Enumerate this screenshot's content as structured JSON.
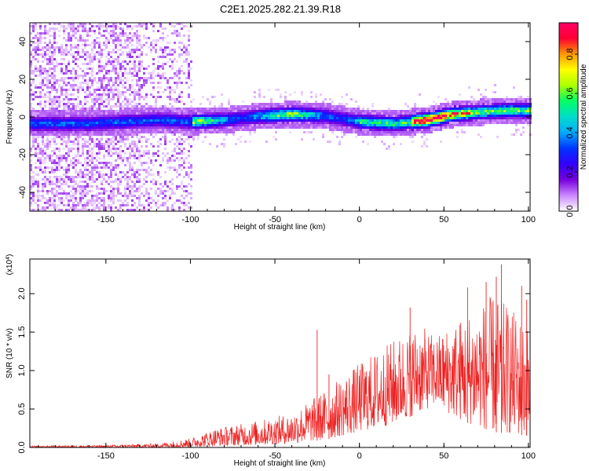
{
  "title": "C2E1.2025.282.21.39.R18",
  "colors": {
    "snr_line": "#ee2222",
    "background": "#ffffff",
    "axis": "#000000"
  },
  "chart_data": [
    {
      "type": "heatmap",
      "name": "spectrogram",
      "xlabel": "Height of straight line (km)",
      "ylabel": "Frequency (Hz)",
      "xlim": [
        -195,
        101
      ],
      "ylim": [
        -50,
        50
      ],
      "xticks": [
        -150,
        -100,
        -50,
        0,
        50,
        100
      ],
      "yticks": [
        -40,
        -20,
        0,
        20,
        40
      ],
      "colorbar": {
        "label": "Normalized spectral amplitude",
        "range": [
          0.0,
          0.96
        ],
        "ticks": [
          0.0,
          0.2,
          0.4,
          0.6,
          0.8
        ],
        "stops": [
          "#ffffff",
          "#cc88ff",
          "#7700dd",
          "#3300ff",
          "#0033ff",
          "#00aaff",
          "#00ddcc",
          "#00ff66",
          "#aaff00",
          "#ffff00",
          "#ff9900",
          "#ff0033",
          "#ff0066"
        ]
      },
      "ridge": [
        {
          "x": -185,
          "f": -3
        },
        {
          "x": -160,
          "f": -3
        },
        {
          "x": -140,
          "f": -2
        },
        {
          "x": -120,
          "f": -1
        },
        {
          "x": -100,
          "f": -2
        },
        {
          "x": -80,
          "f": -1
        },
        {
          "x": -60,
          "f": 1
        },
        {
          "x": -40,
          "f": 2
        },
        {
          "x": -20,
          "f": 1
        },
        {
          "x": 0,
          "f": -2
        },
        {
          "x": 20,
          "f": -3
        },
        {
          "x": 40,
          "f": -1
        },
        {
          "x": 55,
          "f": 2
        },
        {
          "x": 70,
          "f": 3
        },
        {
          "x": 85,
          "f": 4
        },
        {
          "x": 100,
          "f": 4
        }
      ]
    },
    {
      "type": "line",
      "name": "snr",
      "xlabel": "Height of straight line (km)",
      "ylabel": "SNR (10 * v/v)",
      "yscale_label": "(x10",
      "yscale_exp": "4",
      "yscale_close": ")",
      "xlim": [
        -195,
        101
      ],
      "ylim": [
        0,
        2.45
      ],
      "xticks": [
        -150,
        -100,
        -50,
        0,
        50,
        100
      ],
      "yticks": [
        "0.0",
        "0.5",
        "1.0",
        "1.5",
        "2.0"
      ],
      "envelope": [
        {
          "x": -195,
          "lo": 0.0,
          "hi": 0.02
        },
        {
          "x": -150,
          "lo": 0.0,
          "hi": 0.03
        },
        {
          "x": -120,
          "lo": 0.0,
          "hi": 0.05
        },
        {
          "x": -100,
          "lo": 0.0,
          "hi": 0.12
        },
        {
          "x": -85,
          "lo": 0.02,
          "hi": 0.25
        },
        {
          "x": -60,
          "lo": 0.03,
          "hi": 0.35
        },
        {
          "x": -40,
          "lo": 0.05,
          "hi": 0.45
        },
        {
          "x": -20,
          "lo": 0.1,
          "hi": 0.75
        },
        {
          "x": 0,
          "lo": 0.2,
          "hi": 1.1
        },
        {
          "x": 20,
          "lo": 0.3,
          "hi": 1.4
        },
        {
          "x": 35,
          "lo": 0.45,
          "hi": 1.6
        },
        {
          "x": 45,
          "lo": 0.55,
          "hi": 1.45
        },
        {
          "x": 60,
          "lo": 0.35,
          "hi": 1.7
        },
        {
          "x": 80,
          "lo": 0.2,
          "hi": 2.0
        },
        {
          "x": 100,
          "lo": 0.15,
          "hi": 1.6
        }
      ],
      "spikes": [
        {
          "x": -25,
          "y": 1.53
        },
        {
          "x": -18,
          "y": 0.95
        },
        {
          "x": 30,
          "y": 1.82
        },
        {
          "x": 64,
          "y": 2.08
        },
        {
          "x": 81,
          "y": 2.22
        },
        {
          "x": 84,
          "y": 2.38
        },
        {
          "x": 75,
          "y": 2.15
        },
        {
          "x": 96,
          "y": 2.1
        },
        {
          "x": 99,
          "y": 1.92
        }
      ]
    }
  ]
}
